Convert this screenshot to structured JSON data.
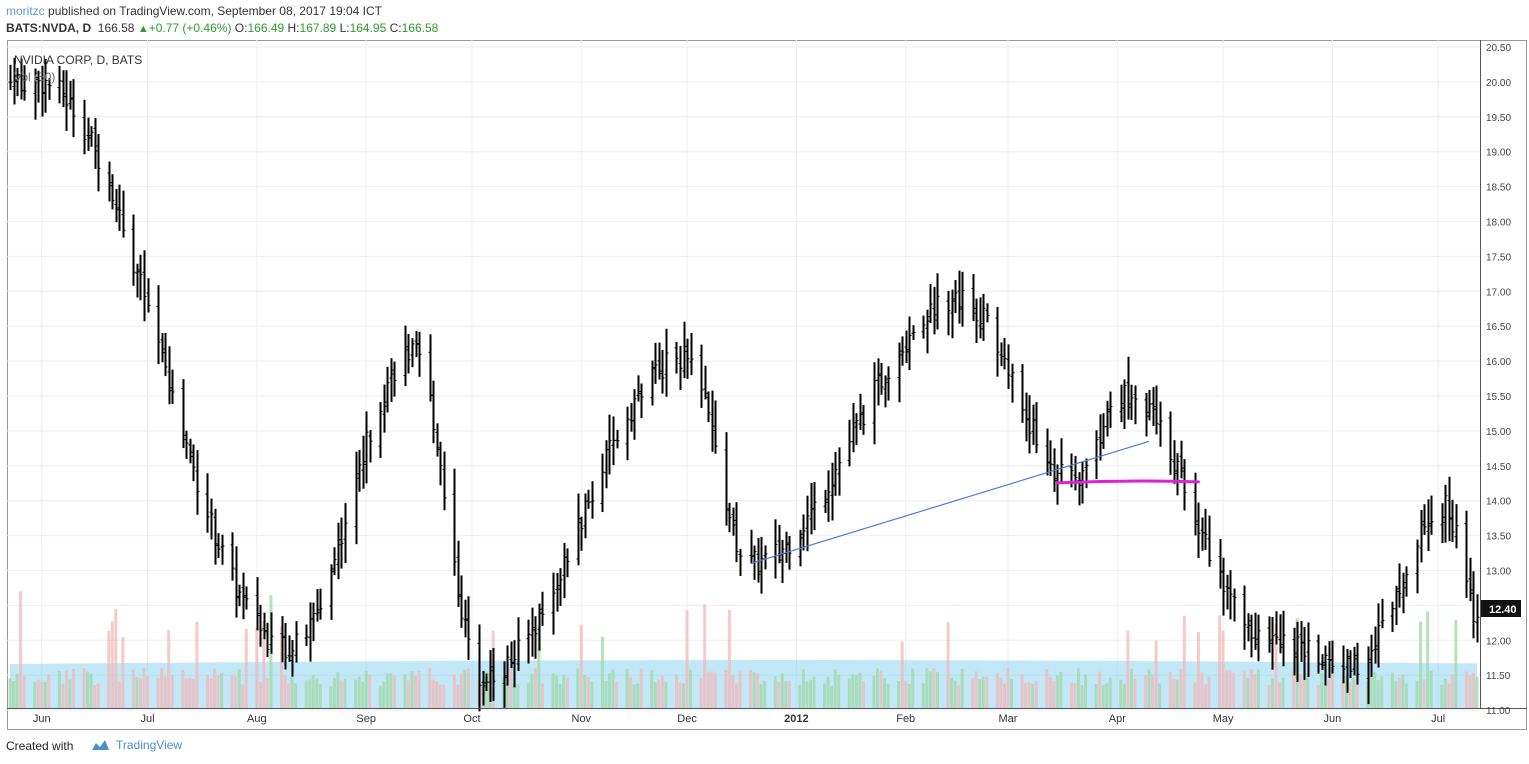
{
  "header": {
    "author": "moritzc",
    "published_text": "published on TradingView.com, September 08, 2017 19:04 ICT",
    "symbol": "BATS:NVDA, D",
    "last": "166.58",
    "change": "+0.77 (+0.46%)",
    "o_label": "O:",
    "o_value": "166.49",
    "h_label": "H:",
    "h_value": "167.89",
    "l_label": "L:",
    "l_value": "164.95",
    "c_label": "C:",
    "c_value": "166.58"
  },
  "chart_data": {
    "type": "ohlc",
    "title": "NVIDIA CORP, D, BATS",
    "volume_label": "Vol (50)",
    "x_tick_labels": [
      "Jun",
      "Jul",
      "Aug",
      "Sep",
      "Oct",
      "Nov",
      "Dec",
      "2012",
      "Feb",
      "Mar",
      "Apr",
      "May",
      "Jun",
      "Jul"
    ],
    "y_tick_labels": [
      "20.50",
      "20.00",
      "19.50",
      "19.00",
      "18.50",
      "18.00",
      "17.50",
      "17.00",
      "16.50",
      "16.00",
      "15.50",
      "15.00",
      "14.50",
      "14.00",
      "13.50",
      "13.00",
      "12.50",
      "12.00",
      "11.50",
      "11.00"
    ],
    "ylim": [
      11.0,
      20.5
    ],
    "last_price_label": "12.40",
    "colors": {
      "bars": "#000000",
      "volume_up": "#9fd8a6",
      "volume_down": "#f2b8b8",
      "volume_ma_fill": "#8fd3f0",
      "trendline": "#4a7fd4",
      "support_line": "#e020d8",
      "grid": "#eeeeee"
    },
    "key_prices": [
      {
        "date": "2011-05-31",
        "value": 20.0,
        "label": "high"
      },
      {
        "date": "2011-08-10",
        "value": 11.9,
        "label": "low"
      },
      {
        "date": "2011-09-14",
        "value": 16.1
      },
      {
        "date": "2011-10-04",
        "value": 11.5,
        "label": "low"
      },
      {
        "date": "2011-11-30",
        "value": 16.05
      },
      {
        "date": "2011-12-19",
        "value": 13.1
      },
      {
        "date": "2012-02-16",
        "value": 16.9,
        "label": "high"
      },
      {
        "date": "2012-03-19",
        "value": 14.3
      },
      {
        "date": "2012-04-03",
        "value": 15.5
      },
      {
        "date": "2012-05-14",
        "value": 12.0
      },
      {
        "date": "2012-06-06",
        "value": 11.65,
        "label": "low"
      },
      {
        "date": "2012-07-03",
        "value": 13.9
      },
      {
        "date": "2012-07-12",
        "value": 12.4,
        "label": "last"
      }
    ],
    "drawings": [
      {
        "type": "trendline",
        "from": {
          "date": "2011-12-19",
          "value": 13.1
        },
        "to": {
          "date": "2012-04-10",
          "value": 14.85
        }
      },
      {
        "type": "horizontal",
        "from_date": "2012-03-15",
        "to_date": "2012-04-24",
        "value": 14.27
      }
    ],
    "grid": true
  },
  "footer": {
    "created_with": "Created with",
    "brand": "TradingView"
  }
}
